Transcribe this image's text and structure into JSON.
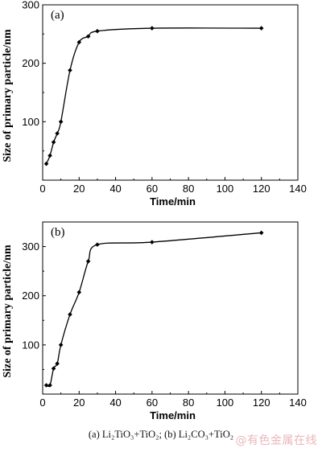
{
  "chart_data": [
    {
      "type": "line",
      "panel_label": "(a)",
      "xlabel": "Time/min",
      "ylabel": "Size of primary particle/nm",
      "xlim": [
        0,
        140
      ],
      "ylim": [
        0,
        300
      ],
      "xticks": [
        0,
        20,
        40,
        60,
        80,
        100,
        120,
        140
      ],
      "yticks": [
        100,
        200,
        300
      ],
      "x": [
        2,
        4,
        6,
        8,
        10,
        15,
        20,
        25,
        30,
        60,
        120
      ],
      "y": [
        28,
        42,
        65,
        80,
        100,
        188,
        236,
        246,
        255,
        260,
        260
      ]
    },
    {
      "type": "line",
      "panel_label": "(b)",
      "xlabel": "Time/min",
      "ylabel": "Size of primary particle/nm",
      "xlim": [
        0,
        140
      ],
      "ylim": [
        0,
        350
      ],
      "xticks": [
        0,
        20,
        40,
        60,
        80,
        100,
        120,
        140
      ],
      "yticks": [
        100,
        200,
        300
      ],
      "x": [
        2,
        4,
        6,
        8,
        10,
        15,
        20,
        25,
        30,
        60,
        120
      ],
      "y": [
        18,
        18,
        52,
        62,
        100,
        162,
        207,
        270,
        304,
        309,
        328
      ]
    }
  ],
  "caption": "(a) Li₂TiO₃+TiO₂; (b) Li₂CO₃+TiO₂",
  "watermark": "@有色金属在线"
}
